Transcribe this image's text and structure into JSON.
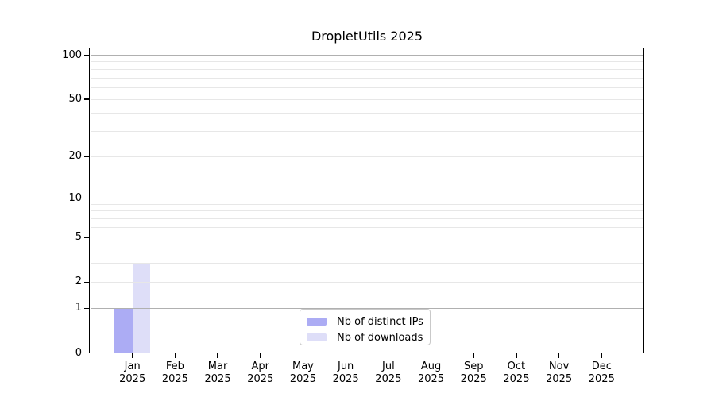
{
  "title": "DropletUtils 2025",
  "chart_data": {
    "type": "bar",
    "title": "DropletUtils 2025",
    "x_categories": [
      "Jan 2025",
      "Feb 2025",
      "Mar 2025",
      "Apr 2025",
      "May 2025",
      "Jun 2025",
      "Jul 2025",
      "Aug 2025",
      "Sep 2025",
      "Oct 2025",
      "Nov 2025",
      "Dec 2025"
    ],
    "series": [
      {
        "name": "Nb of distinct IPs",
        "color": "#acacf4",
        "values": [
          1,
          0,
          0,
          0,
          0,
          0,
          0,
          0,
          0,
          0,
          0,
          0
        ]
      },
      {
        "name": "Nb of downloads",
        "color": "#dedef8",
        "values": [
          3,
          0,
          0,
          0,
          0,
          0,
          0,
          0,
          0,
          0,
          0,
          0
        ]
      }
    ],
    "y_axis": {
      "scale": "log1p",
      "tick_values": [
        0,
        1,
        2,
        5,
        10,
        20,
        50,
        100
      ],
      "tick_labels": [
        "0",
        "1",
        "2",
        "5",
        "10",
        "20",
        "50",
        "100"
      ],
      "major_grid_values": [
        1,
        10,
        100
      ],
      "minor_grid_values": [
        2,
        3,
        4,
        5,
        6,
        7,
        8,
        9,
        20,
        30,
        40,
        50,
        60,
        70,
        80,
        90
      ],
      "ylim": [
        0,
        110
      ]
    },
    "grid": "on",
    "legend": {
      "position": "inside-bottom-center",
      "items": [
        "Nb of distinct IPs",
        "Nb of downloads"
      ]
    },
    "colors": {
      "grid_major": "#b0b0b0",
      "grid_minor": "#e7e7e7",
      "axis": "#000000",
      "text": "#000000",
      "legend_border": "#c9c9c9",
      "background": "#ffffff"
    }
  }
}
